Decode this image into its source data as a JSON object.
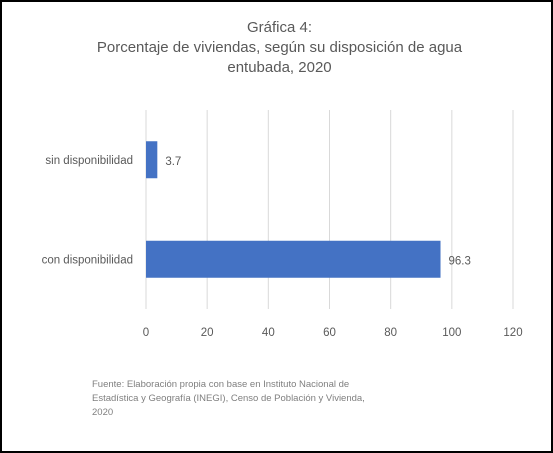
{
  "chart_data": {
    "type": "bar",
    "orientation": "horizontal",
    "title_lines": [
      "Gráfica 4:",
      "Porcentaje de viviendas, según su disposición de agua",
      "entubada, 2020"
    ],
    "categories": [
      "sin disponibilidad",
      "con disponibilidad"
    ],
    "values": [
      3.7,
      96.3
    ],
    "value_labels": [
      "3.7",
      "96.3"
    ],
    "x_ticks": [
      0,
      20,
      40,
      60,
      80,
      100,
      120
    ],
    "xlim": [
      0,
      120
    ],
    "grid": "vertical",
    "bar_color": "#4472c4",
    "source_lines": [
      "Fuente: Elaboración propia con base en Instituto Nacional de",
      "Estadística y Geografía (INEGI), Censo de Población y Vivienda,",
      "2020"
    ]
  }
}
